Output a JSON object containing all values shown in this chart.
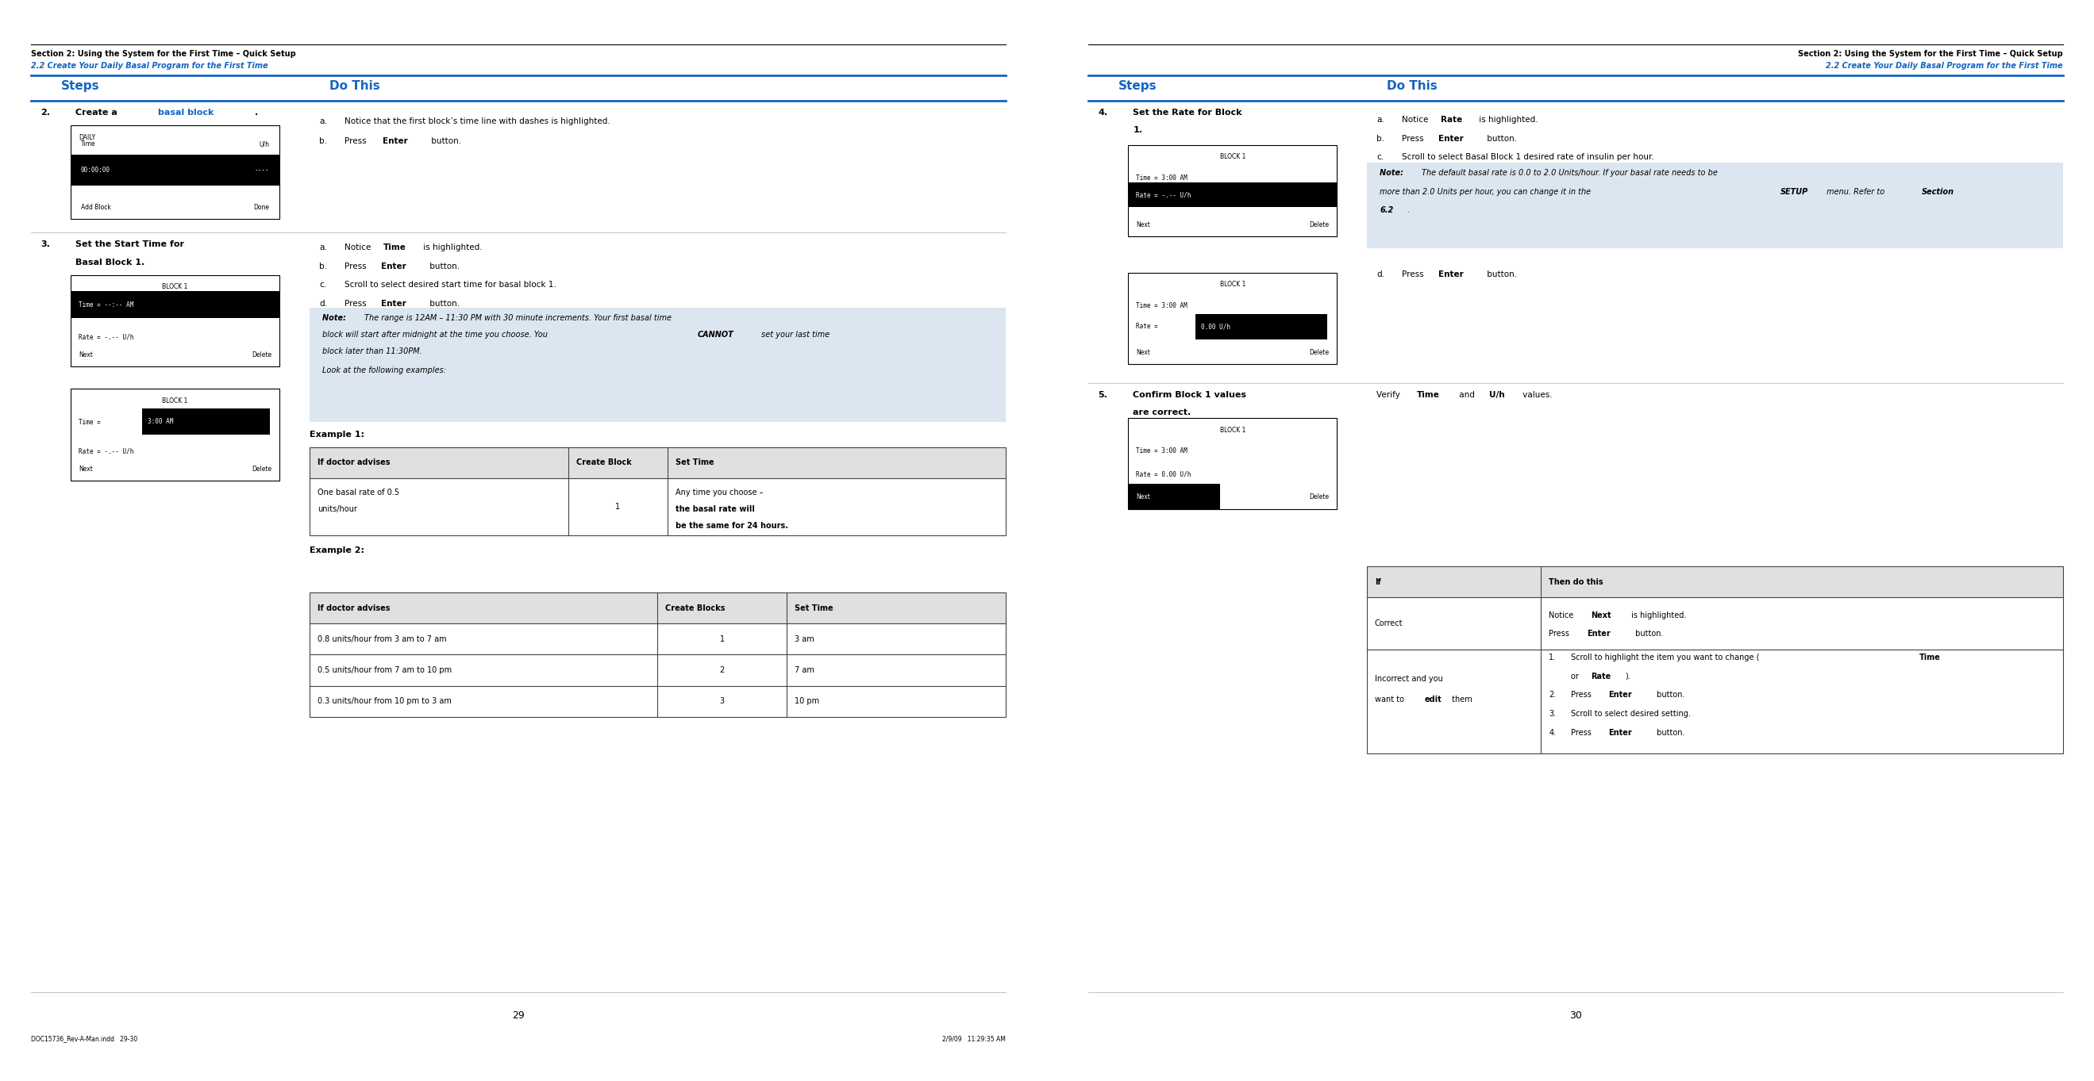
{
  "page_bg": "#ffffff",
  "blue_color": "#1565c0",
  "steps_blue": "#1565c0",
  "note_bg": "#dce6f1",
  "left_page": {
    "header_bold": "Section 2: Using the System for the First Time – Quick Setup",
    "header_italic_blue": "2.2 Create Your Daily Basal Program for the First Time",
    "steps_label": "Steps",
    "do_this_label": "Do This",
    "page_num": "29",
    "footer": "DOC15736_Rev-A-Man.indd   29-30",
    "footer_right": "2/9/09   11:29:35 AM",
    "ex2_rows": [
      [
        "0.8 units/hour from 3 am to 7 am",
        "1",
        "3 am"
      ],
      [
        "0.5 units/hour from 7 am to 10 pm",
        "2",
        "7 am"
      ],
      [
        "0.3 units/hour from 10 pm to 3 am",
        "3",
        "10 pm"
      ]
    ]
  },
  "right_page": {
    "header_bold": "Section 2: Using the System for the First Time – Quick Setup",
    "header_italic_blue": "2.2 Create Your Daily Basal Program for the First Time",
    "steps_label": "Steps",
    "do_this_label": "Do This",
    "page_num": "30"
  }
}
